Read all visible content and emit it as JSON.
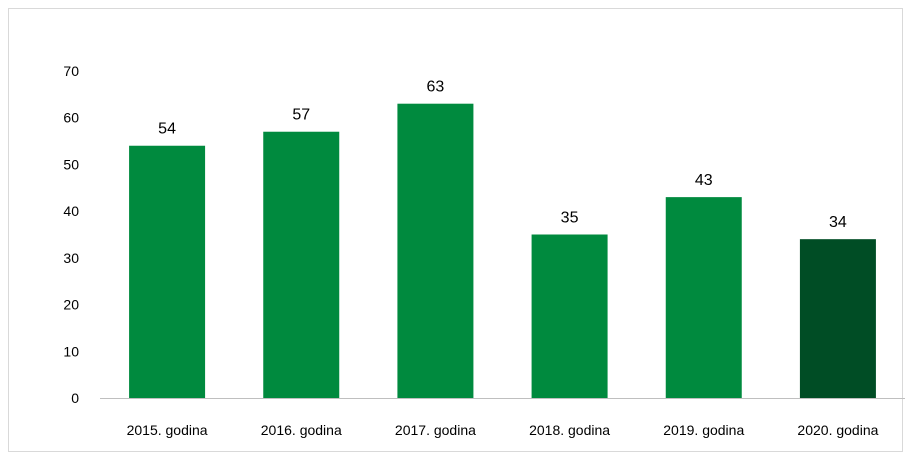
{
  "chart_data": {
    "type": "bar",
    "categories": [
      "2015. godina",
      "2016. godina",
      "2017. godina",
      "2018. godina",
      "2019. godina",
      "2020. godina"
    ],
    "values": [
      54,
      57,
      63,
      35,
      43,
      34
    ],
    "data_labels": [
      "54",
      "57",
      "63",
      "35",
      "43",
      "34"
    ],
    "ylim": [
      0,
      70
    ],
    "yticks": [
      0,
      10,
      20,
      30,
      40,
      50,
      60,
      70
    ],
    "grid": false,
    "legend": "none",
    "colors": {
      "bar": "#008a3e",
      "highlight_bar": "#004d25",
      "axis": "#bfbfbf"
    },
    "highlight_index": 5
  }
}
